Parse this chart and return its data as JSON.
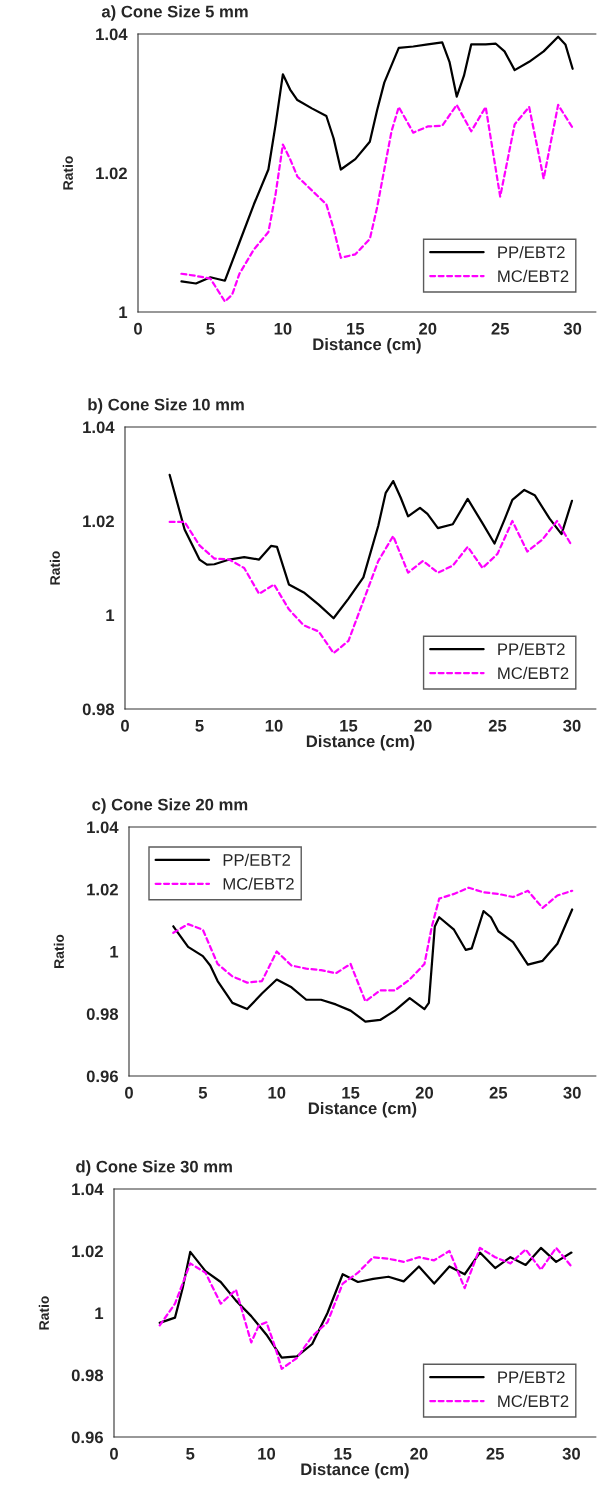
{
  "chart_data": [
    {
      "type": "line",
      "title": "a) Cone Size 5 mm",
      "xlabel": "Distance (cm)",
      "ylabel": "Ratio",
      "xlim": [
        0,
        31.6
      ],
      "xticks": [
        0,
        5,
        10,
        15,
        20,
        25,
        30
      ],
      "ylim": [
        1,
        1.04
      ],
      "yticks": [
        1,
        {
          "value": 1.02,
          "label": "1.02"
        },
        {
          "value": 1.04,
          "label": "1.04"
        }
      ],
      "legend": "bottom right",
      "grid": false,
      "series": [
        {
          "name": "PP/EBT2",
          "color": "#000000",
          "line_style": "solid",
          "x": [
            3,
            4,
            5,
            6,
            7,
            8,
            9,
            9.5,
            10,
            10.5,
            11,
            12,
            13,
            13.5,
            14,
            15,
            16,
            16.5,
            17,
            18,
            19,
            20,
            21,
            21.5,
            22,
            22.5,
            23,
            24,
            24.7,
            25.3,
            26,
            27,
            28,
            29,
            29.5,
            30
          ],
          "values": [
            1.0044,
            1.0041,
            1.005,
            1.0045,
            1.01,
            1.0155,
            1.0205,
            1.027,
            1.0342,
            1.032,
            1.0305,
            1.0293,
            1.0282,
            1.025,
            1.0205,
            1.022,
            1.0245,
            1.029,
            1.033,
            1.038,
            1.0382,
            1.0385,
            1.0388,
            1.036,
            1.031,
            1.034,
            1.0385,
            1.0385,
            1.0386,
            1.0375,
            1.0348,
            1.036,
            1.0375,
            1.0396,
            1.0385,
            1.035
          ]
        },
        {
          "name": "MC/EBT2",
          "color": "#ff00ff",
          "line_style": "dashed",
          "x": [
            3,
            4,
            5,
            6,
            6.5,
            7,
            8,
            9,
            9.5,
            10,
            10.5,
            11,
            12,
            13,
            13.5,
            14,
            15,
            16,
            16.5,
            17,
            17.5,
            18,
            19,
            20,
            21,
            22,
            23,
            24,
            25,
            26,
            27,
            28,
            29,
            30
          ],
          "values": [
            1.0055,
            1.0052,
            1.0048,
            1.0015,
            1.0025,
            1.0055,
            1.009,
            1.0115,
            1.017,
            1.0241,
            1.022,
            1.0195,
            1.0175,
            1.0155,
            1.012,
            1.0078,
            1.0083,
            1.0105,
            1.015,
            1.0205,
            1.026,
            1.0295,
            1.0258,
            1.0267,
            1.0268,
            1.0298,
            1.026,
            1.0295,
            1.0166,
            1.027,
            1.0295,
            1.0192,
            1.0298,
            1.0265
          ]
        }
      ]
    },
    {
      "type": "line",
      "title": "b) Cone Size 10 mm",
      "xlabel": "Distance (cm)",
      "ylabel": "Ratio",
      "xlim": [
        0,
        31.6
      ],
      "xticks": [
        0,
        5,
        10,
        15,
        20,
        25,
        30
      ],
      "ylim": [
        0.98,
        1.04
      ],
      "yticks": [
        0.98,
        1,
        1.02,
        1.04
      ],
      "legend": "bottom right",
      "grid": false,
      "series": [
        {
          "name": "PP/EBT2",
          "color": "#000000",
          "line_style": "solid",
          "x": [
            3,
            4,
            5,
            5.5,
            6,
            7,
            8,
            9,
            9.8,
            10.2,
            11,
            12,
            13,
            14,
            15,
            16,
            17,
            17.5,
            18,
            18.5,
            19,
            19.8,
            20.3,
            21,
            22,
            23,
            24,
            24.8,
            25.5,
            26,
            26.8,
            27.5,
            28.5,
            29.3,
            30
          ],
          "values": [
            1.0298,
            1.0182,
            1.0118,
            1.0107,
            1.0108,
            1.0118,
            1.0123,
            1.0118,
            1.0147,
            1.0145,
            1.0065,
            1.0048,
            1.0022,
            0.9993,
            1.0035,
            1.008,
            1.019,
            1.026,
            1.0285,
            1.025,
            1.021,
            1.0228,
            1.0215,
            1.0185,
            1.0193,
            1.0247,
            1.0195,
            1.0152,
            1.0205,
            1.0245,
            1.0266,
            1.0255,
            1.0205,
            1.0172,
            1.0243
          ]
        },
        {
          "name": "MC/EBT2",
          "color": "#ff00ff",
          "line_style": "dashed",
          "x": [
            3,
            4,
            5,
            6,
            7,
            8,
            9,
            10,
            11,
            12,
            13,
            14,
            15,
            16,
            17,
            18,
            19,
            20,
            21,
            22,
            23,
            24,
            25,
            26,
            27,
            28,
            29,
            30
          ],
          "values": [
            1.0198,
            1.0198,
            1.0148,
            1.012,
            1.0118,
            1.01,
            1.0045,
            1.0065,
            1.0012,
            0.9978,
            0.9965,
            0.9919,
            0.9945,
            1.003,
            1.0115,
            1.0168,
            1.009,
            1.0115,
            1.009,
            1.0105,
            1.0145,
            1.01,
            1.013,
            1.02,
            1.0135,
            1.016,
            1.02,
            1.0147
          ]
        }
      ]
    },
    {
      "type": "line",
      "title": "c) Cone Size 20 mm",
      "xlabel": "Distance (cm)",
      "ylabel": "Ratio",
      "xlim": [
        0,
        31.6
      ],
      "xticks": [
        0,
        5,
        10,
        15,
        20,
        25,
        30
      ],
      "ylim": [
        0.96,
        1.04
      ],
      "yticks": [
        0.96,
        0.98,
        1,
        1.02,
        1.04
      ],
      "legend": "top left",
      "grid": false,
      "series": [
        {
          "name": "PP/EBT2",
          "color": "#000000",
          "line_style": "solid",
          "x": [
            3,
            4,
            5,
            5.5,
            6,
            7,
            8,
            9,
            10,
            11,
            12,
            13,
            14,
            15,
            16,
            17,
            18,
            19,
            20,
            20.3,
            20.7,
            21,
            22,
            22.8,
            23.2,
            24,
            24.5,
            25,
            26,
            27,
            28,
            29,
            30
          ],
          "values": [
            1.0081,
            1.0015,
            0.9985,
            0.9955,
            0.9905,
            0.9835,
            0.9815,
            0.9865,
            0.991,
            0.9885,
            0.9845,
            0.9845,
            0.983,
            0.981,
            0.9775,
            0.978,
            0.981,
            0.985,
            0.9815,
            0.9835,
            1.008,
            1.011,
            1.007,
            1.0005,
            1.001,
            1.013,
            1.011,
            1.0065,
            1.003,
            0.9958,
            0.997,
            1.0025,
            1.0135
          ]
        },
        {
          "name": "MC/EBT2",
          "color": "#ff00ff",
          "line_style": "dashed",
          "x": [
            3,
            4,
            5,
            6,
            7,
            8,
            9,
            10,
            11,
            12,
            13,
            14,
            15,
            16,
            17,
            18,
            19,
            20,
            20.5,
            21,
            22,
            23,
            24,
            25,
            26,
            27,
            28,
            29,
            30
          ],
          "values": [
            1.006,
            1.0088,
            1.007,
            0.996,
            0.992,
            0.99,
            0.9905,
            1.0,
            0.9955,
            0.9945,
            0.994,
            0.993,
            0.996,
            0.984,
            0.9875,
            0.9875,
            0.991,
            0.996,
            1.008,
            1.017,
            1.0185,
            1.0205,
            1.019,
            1.0185,
            1.0175,
            1.0195,
            1.014,
            1.018,
            1.0195
          ]
        }
      ]
    },
    {
      "type": "line",
      "title": "d) Cone Size 30 mm",
      "xlabel": "Distance (cm)",
      "ylabel": "Ratio",
      "xlim": [
        0,
        31.6
      ],
      "xticks": [
        0,
        5,
        10,
        15,
        20,
        25,
        30
      ],
      "ylim": [
        0.96,
        1.04
      ],
      "yticks": [
        0.96,
        0.98,
        1,
        1.02,
        1.04
      ],
      "legend": "bottom right",
      "grid": false,
      "series": [
        {
          "name": "PP/EBT2",
          "color": "#000000",
          "line_style": "solid",
          "x": [
            3,
            4,
            4.5,
            5,
            6,
            7,
            8,
            9,
            10,
            11,
            12,
            13,
            14,
            15,
            16,
            17,
            18,
            19,
            20,
            21,
            22,
            23,
            24,
            25,
            26,
            27,
            28,
            29,
            30
          ],
          "values": [
            0.9968,
            0.9985,
            1.008,
            1.0197,
            1.0135,
            1.01,
            1.004,
            0.999,
            0.993,
            0.9856,
            0.986,
            0.99,
            1.0,
            1.0125,
            1.01,
            1.011,
            1.0117,
            1.0102,
            1.015,
            1.0095,
            1.015,
            1.0125,
            1.0195,
            1.0145,
            1.018,
            1.0155,
            1.021,
            1.0165,
            1.0195
          ]
        },
        {
          "name": "MC/EBT2",
          "color": "#ff00ff",
          "line_style": "dashed",
          "x": [
            3,
            4,
            5,
            6,
            7,
            8,
            8.5,
            9,
            9.5,
            10,
            10.5,
            11,
            12,
            13,
            14,
            15,
            16,
            17,
            18,
            19,
            20,
            21,
            22,
            23,
            24,
            25,
            26,
            27,
            28,
            29,
            30
          ],
          "values": [
            0.996,
            1.003,
            1.016,
            1.013,
            1.003,
            1.0075,
            0.999,
            0.9905,
            0.996,
            0.997,
            0.99,
            0.982,
            0.9855,
            0.9925,
            0.997,
            1.0095,
            1.013,
            1.018,
            1.0175,
            1.0165,
            1.018,
            1.017,
            1.02,
            1.008,
            1.021,
            1.018,
            1.016,
            1.0205,
            1.014,
            1.021,
            1.015
          ]
        }
      ]
    }
  ]
}
